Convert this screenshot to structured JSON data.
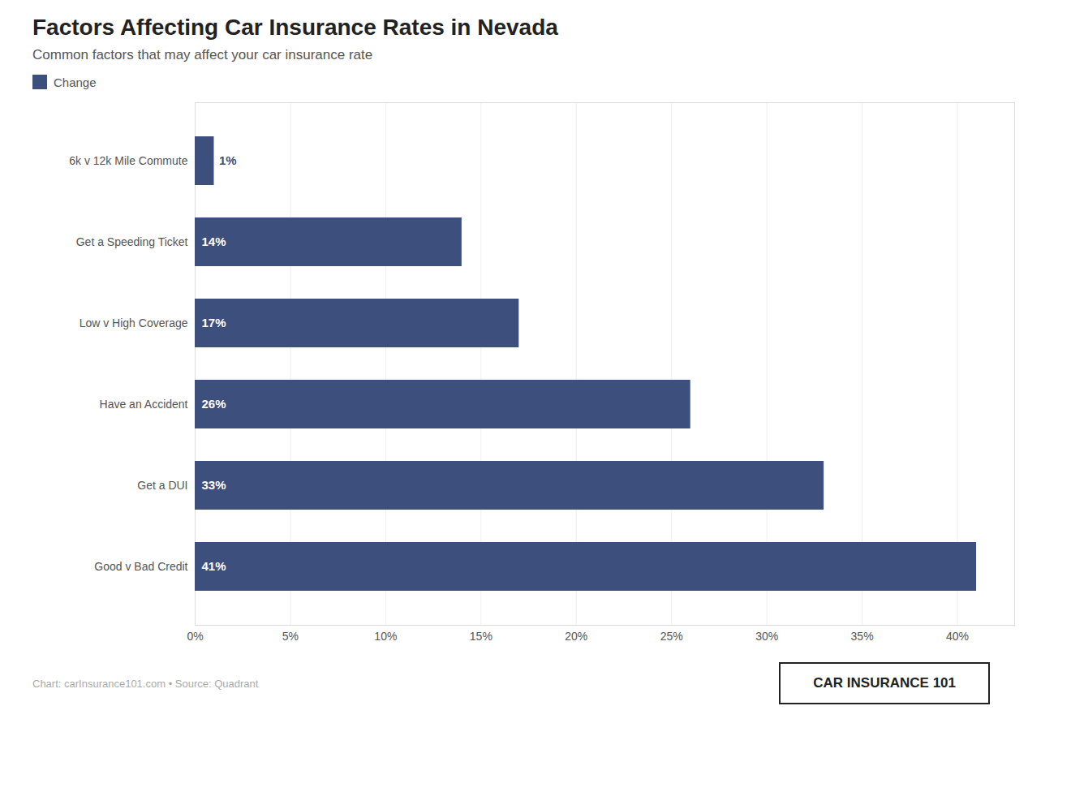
{
  "chart_data": {
    "type": "bar",
    "orientation": "horizontal",
    "title": "Factors Affecting Car Insurance Rates in Nevada",
    "subtitle": "Common factors that may affect your car insurance rate",
    "categories": [
      "6k v 12k Mile Commute",
      "Get a Speeding Ticket",
      "Low v High Coverage",
      "Have an Accident",
      "Get a DUI",
      "Good v Bad Credit"
    ],
    "series": [
      {
        "name": "Change",
        "color": "#3d4f7c",
        "values": [
          1,
          14,
          17,
          26,
          33,
          41
        ],
        "value_labels": [
          "1%",
          "14%",
          "17%",
          "26%",
          "33%",
          "41%"
        ]
      }
    ],
    "xlim": [
      0,
      43
    ],
    "xticks": [
      {
        "value": 0,
        "label": "0%"
      },
      {
        "value": 5,
        "label": "5%"
      },
      {
        "value": 10,
        "label": "10%"
      },
      {
        "value": 15,
        "label": "15%"
      },
      {
        "value": 20,
        "label": "20%"
      },
      {
        "value": 25,
        "label": "25%"
      },
      {
        "value": 30,
        "label": "30%"
      },
      {
        "value": 35,
        "label": "35%"
      },
      {
        "value": 40,
        "label": "40%"
      }
    ],
    "grid": true,
    "legend": "upper left",
    "data_labels": true,
    "annotations": [
      "Chart: carInsurance101.com • Source: Quadrant",
      "CAR INSURANCE 101"
    ]
  }
}
